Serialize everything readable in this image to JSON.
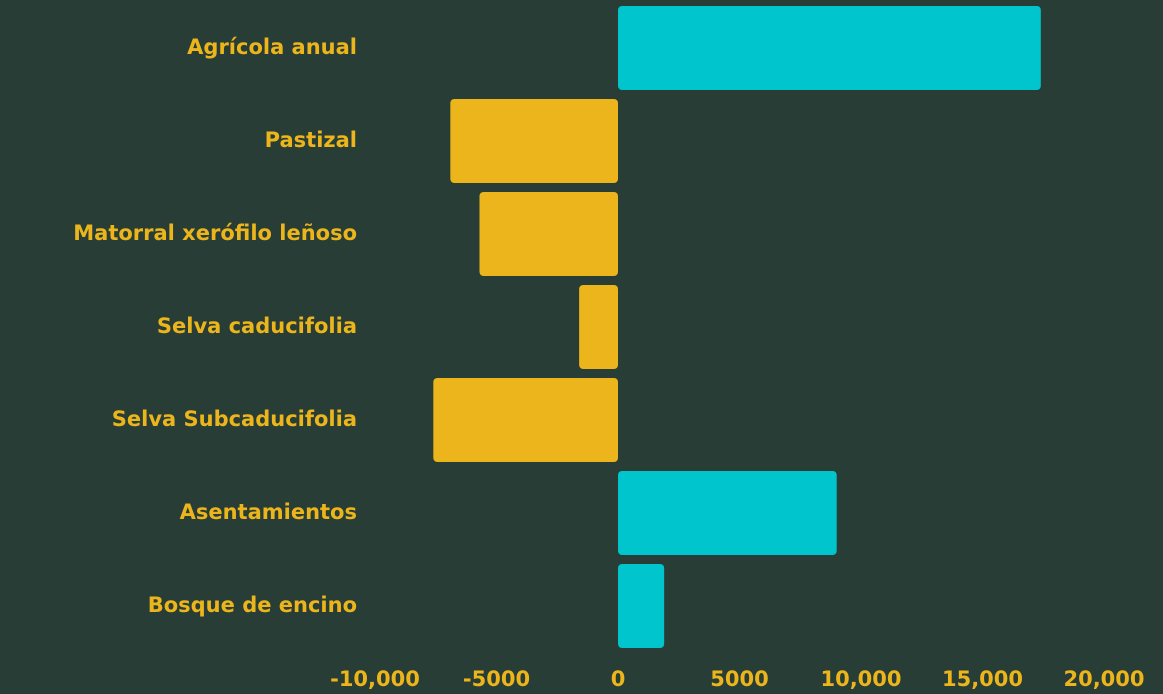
{
  "chart_data": {
    "type": "barh",
    "categories": [
      "Agrícola anual",
      "Pastizal",
      "Matorral  xerófilo leñoso",
      "Selva caducifolia",
      "Selva Subcaducifolia",
      "Asentamientos",
      "Bosque de encino"
    ],
    "values": [
      17400,
      -6900,
      -5700,
      -1600,
      -7600,
      9000,
      1900
    ],
    "colors": [
      "#00c5cc",
      "#ebb51b",
      "#ebb51b",
      "#ebb51b",
      "#ebb51b",
      "#00c5cc",
      "#00c5cc"
    ],
    "xlim": [
      -10000,
      20000
    ],
    "xticks": [
      {
        "value": -10000,
        "label": "-10,000"
      },
      -5000,
      0,
      5000,
      {
        "value": 10000,
        "label": "10,000"
      },
      {
        "value": 15000,
        "label": "15,000"
      },
      {
        "value": 20000,
        "label": "20,000"
      }
    ],
    "grid": false
  }
}
